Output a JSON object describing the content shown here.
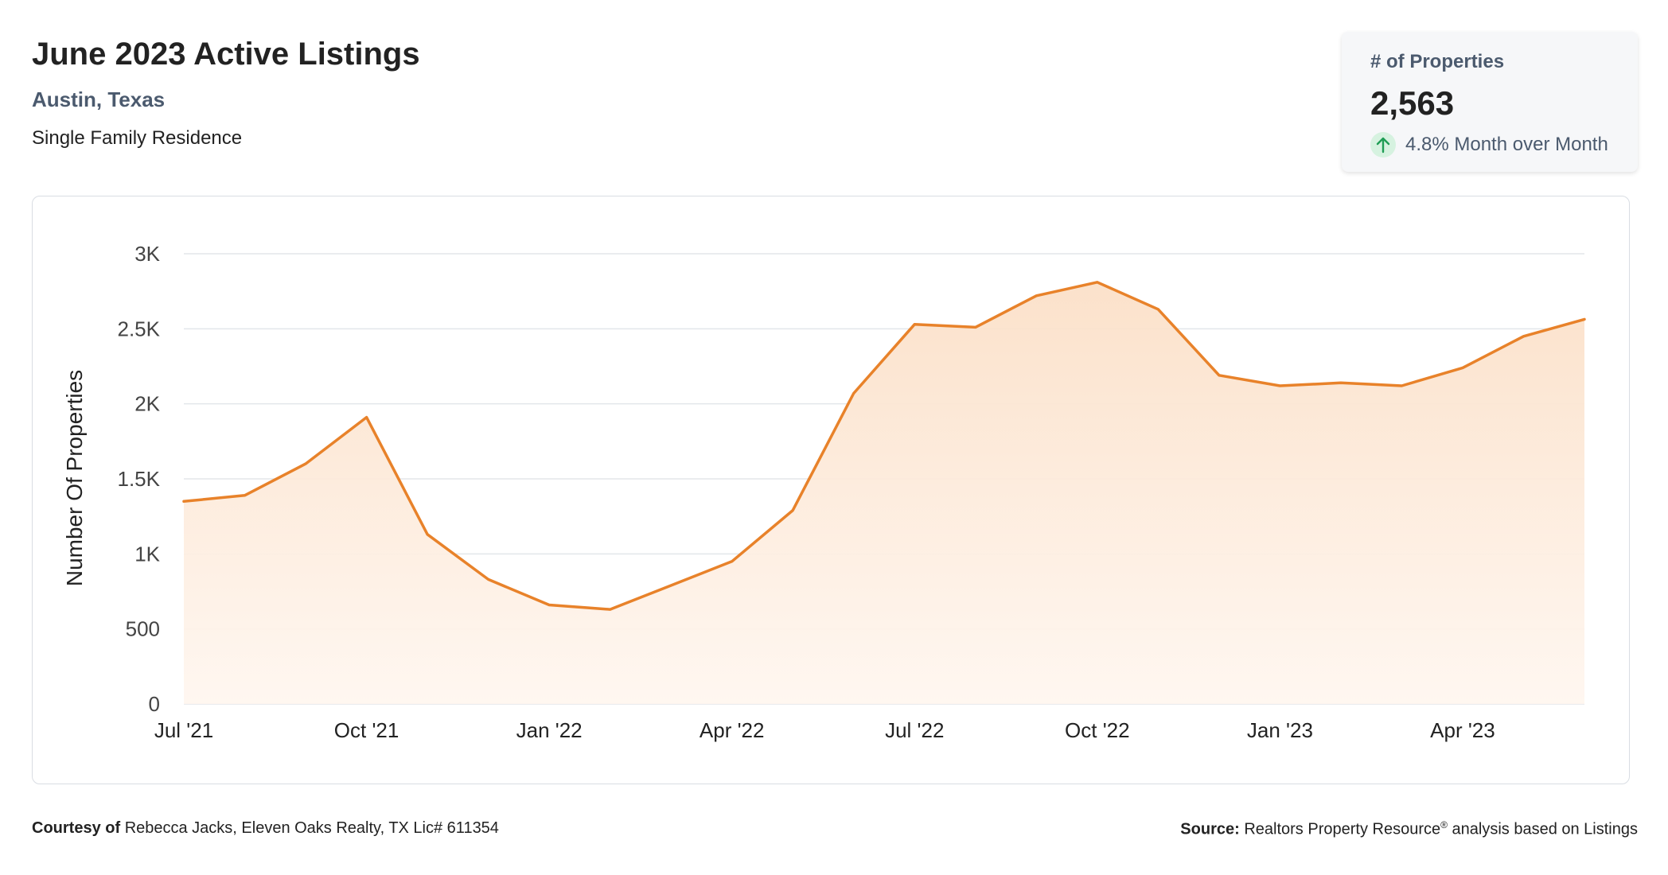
{
  "header": {
    "title": "June 2023 Active Listings",
    "location": "Austin, Texas",
    "property_type": "Single Family Residence"
  },
  "stat_card": {
    "label": "# of Properties",
    "value": "2,563",
    "change": "4.8% Month over Month",
    "change_direction": "up",
    "change_icon": "arrow-up-icon"
  },
  "colors": {
    "line": "#e8822a",
    "fill": "#fbe3cf",
    "grid": "#e3e6ea",
    "up": "#1f9d55"
  },
  "chart_data": {
    "type": "area",
    "ylabel": "Number Of Properties",
    "ylim": [
      0,
      3000
    ],
    "y_ticks": [
      0,
      500,
      1000,
      1500,
      2000,
      2500,
      3000
    ],
    "y_tick_labels": [
      "0",
      "500",
      "1K",
      "1.5K",
      "2K",
      "2.5K",
      "3K"
    ],
    "x_tick_labels": [
      "Jul '21",
      "Oct '21",
      "Jan '22",
      "Apr '22",
      "Jul '22",
      "Oct '22",
      "Jan '23",
      "Apr '23"
    ],
    "x_tick_indices": [
      0,
      3,
      6,
      9,
      12,
      15,
      18,
      21
    ],
    "grid": true,
    "legend": "none",
    "series": [
      {
        "x": [
          "2021-07",
          "2021-08",
          "2021-09",
          "2021-10",
          "2021-11",
          "2021-12",
          "2022-01",
          "2022-02",
          "2022-03",
          "2022-04",
          "2022-05",
          "2022-06",
          "2022-07",
          "2022-08",
          "2022-09",
          "2022-10",
          "2022-11",
          "2022-12",
          "2023-01",
          "2023-02",
          "2023-03",
          "2023-04",
          "2023-05",
          "2023-06"
        ],
        "values": [
          1350,
          1390,
          1600,
          1910,
          1130,
          830,
          660,
          630,
          790,
          950,
          1290,
          2070,
          2530,
          2510,
          2720,
          2810,
          2630,
          2190,
          2120,
          2140,
          2120,
          2240,
          2450,
          2563
        ]
      }
    ]
  },
  "footer": {
    "courtesy_label": "Courtesy of",
    "courtesy_text": "Rebecca Jacks, Eleven Oaks Realty, TX Lic# 611354",
    "source_label": "Source:",
    "source_text_1": "Realtors Property Resource",
    "source_mark": "®",
    "source_text_2": " analysis based on Listings"
  }
}
